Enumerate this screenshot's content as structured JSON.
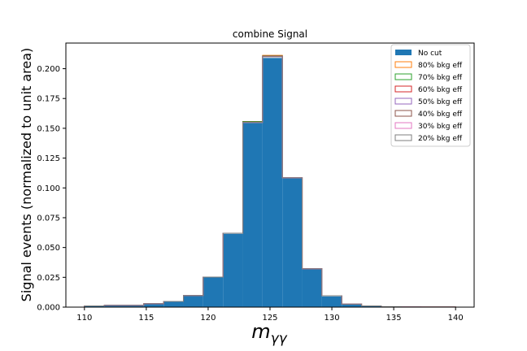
{
  "chart_data": {
    "type": "histogram",
    "title": "combine Signal",
    "xlabel": "m_γγ",
    "ylabel": "Signal events (normalized to unit area)",
    "xlim": [
      108.5,
      141.5
    ],
    "ylim": [
      0,
      0.2215
    ],
    "x_ticks": [
      110,
      115,
      120,
      125,
      130,
      135,
      140
    ],
    "x_tick_labels": [
      "110",
      "115",
      "120",
      "125",
      "130",
      "135",
      "140"
    ],
    "y_ticks": [
      0,
      0.025,
      0.05,
      0.075,
      0.1,
      0.125,
      0.15,
      0.175,
      0.2
    ],
    "y_tick_labels": [
      "0.000",
      "0.025",
      "0.050",
      "0.075",
      "0.100",
      "0.125",
      "0.150",
      "0.175",
      "0.200"
    ],
    "bin_edges": [
      110,
      111.6,
      113.2,
      114.8,
      116.4,
      118,
      119.6,
      121.2,
      122.8,
      124.4,
      126,
      127.6,
      129.2,
      130.8,
      132.4,
      134,
      135.6,
      137.2,
      138.8,
      140
    ],
    "legend_position": "top-right",
    "grid": false,
    "series": [
      {
        "name": "No cut",
        "style": "filled",
        "color": "#1f77b4",
        "values": [
          0.001,
          0.0015,
          0.0015,
          0.0028,
          0.0045,
          0.0095,
          0.025,
          0.0615,
          0.1545,
          0.209,
          0.108,
          0.032,
          0.009,
          0.0025,
          0.0008,
          0.0003,
          0.0002,
          0.0001,
          0.0001
        ]
      },
      {
        "name": "80% bkg eff",
        "style": "step",
        "color": "#ff7f0e",
        "values": [
          0.001,
          0.0015,
          0.0015,
          0.0029,
          0.0048,
          0.0098,
          0.0252,
          0.062,
          0.1555,
          0.2112,
          0.1085,
          0.0322,
          0.0095,
          0.0026,
          0.001,
          0.0003,
          0.0002,
          0.0001,
          0.0001
        ]
      },
      {
        "name": "70% bkg eff",
        "style": "step",
        "color": "#2ca02c",
        "values": [
          0.001,
          0.0015,
          0.0015,
          0.0029,
          0.0048,
          0.0098,
          0.0252,
          0.062,
          0.1557,
          0.2108,
          0.1085,
          0.0322,
          0.0095,
          0.0026,
          0.001,
          0.0003,
          0.0002,
          0.0001,
          0.0001
        ]
      },
      {
        "name": "60% bkg eff",
        "style": "step",
        "color": "#d62728",
        "values": [
          0.001,
          0.0015,
          0.0015,
          0.0029,
          0.0048,
          0.0098,
          0.0252,
          0.062,
          0.1552,
          0.2105,
          0.1085,
          0.0322,
          0.0095,
          0.0026,
          0.001,
          0.0003,
          0.0002,
          0.0001,
          0.0001
        ]
      },
      {
        "name": "50% bkg eff",
        "style": "step",
        "color": "#9467bd",
        "values": [
          0.001,
          0.0015,
          0.0015,
          0.0029,
          0.0048,
          0.0098,
          0.0252,
          0.062,
          0.155,
          0.2103,
          0.1085,
          0.0322,
          0.0095,
          0.0026,
          0.001,
          0.0003,
          0.0002,
          0.0001,
          0.0001
        ]
      },
      {
        "name": "40% bkg eff",
        "style": "step",
        "color": "#8c564b",
        "values": [
          0.001,
          0.0015,
          0.0015,
          0.0029,
          0.0048,
          0.0098,
          0.0252,
          0.062,
          0.155,
          0.2101,
          0.1085,
          0.0322,
          0.0095,
          0.0026,
          0.001,
          0.0003,
          0.0002,
          0.0001,
          0.0001
        ]
      },
      {
        "name": "30% bkg eff",
        "style": "step",
        "color": "#e377c2",
        "values": [
          0.001,
          0.0015,
          0.0015,
          0.0029,
          0.0048,
          0.0098,
          0.0252,
          0.062,
          0.155,
          0.21,
          0.1085,
          0.0322,
          0.0095,
          0.0026,
          0.001,
          0.0003,
          0.0002,
          0.0001,
          0.0001
        ]
      },
      {
        "name": "20% bkg eff",
        "style": "step",
        "color": "#7f7f7f",
        "values": [
          0.001,
          0.0015,
          0.0015,
          0.0029,
          0.0048,
          0.0098,
          0.0252,
          0.062,
          0.155,
          0.21,
          0.1085,
          0.0322,
          0.0095,
          0.0026,
          0.001,
          0.0003,
          0.0002,
          0.0001,
          0.0001
        ]
      }
    ]
  }
}
